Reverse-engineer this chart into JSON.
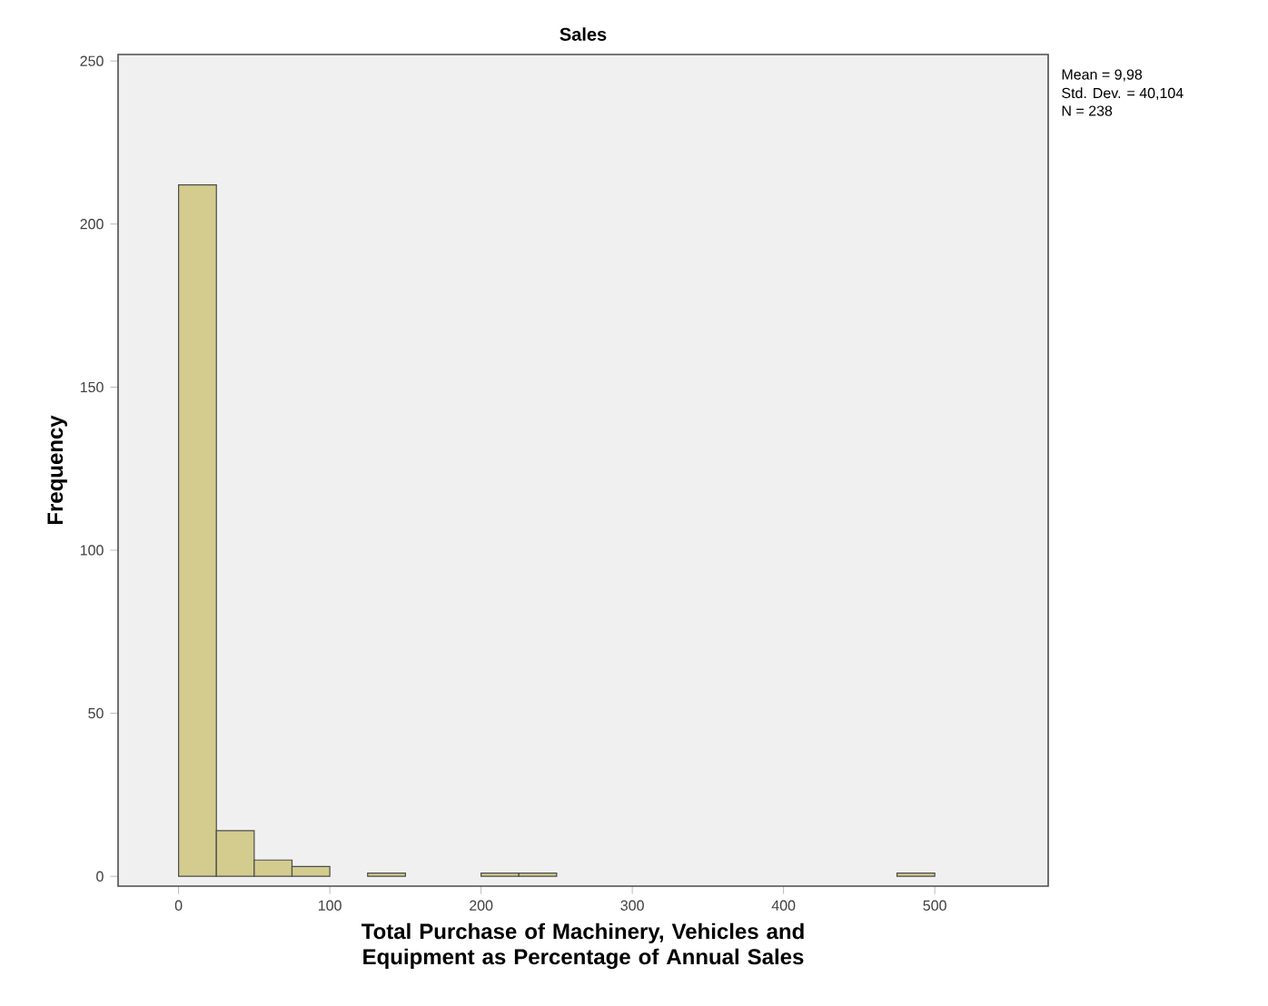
{
  "chart_data": {
    "type": "histogram",
    "title": "Sales",
    "xlabel": "Total Purchase of Machinery, Vehicles and Equipment as Percentage of Annual Sales",
    "ylabel": "Frequency",
    "bins": [
      0,
      25,
      50,
      75,
      100,
      125,
      150,
      175,
      200,
      225,
      250,
      275,
      300,
      325,
      350,
      375,
      400,
      425,
      450,
      475,
      500
    ],
    "values": [
      212,
      14,
      5,
      3,
      0,
      1,
      0,
      0,
      1,
      1,
      0,
      0,
      0,
      0,
      0,
      0,
      0,
      0,
      0,
      1
    ],
    "color": "#d3cc8e",
    "xlim": [
      -40,
      575
    ],
    "ylim": [
      -3,
      252
    ],
    "xticks": [
      0,
      100,
      200,
      300,
      400,
      500
    ],
    "yticks": [
      0,
      50,
      100,
      150,
      200,
      250
    ],
    "annotations": [
      "Mean = 9,98",
      "Std. Dev. = 40,104",
      "N = 238"
    ]
  }
}
